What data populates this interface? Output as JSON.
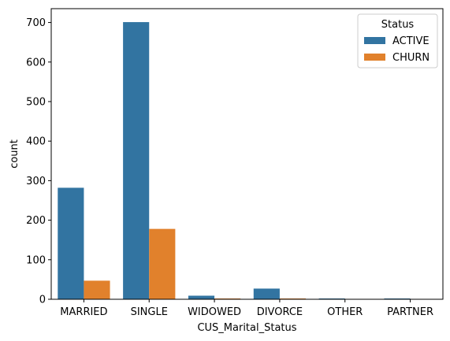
{
  "chart_data": {
    "type": "bar",
    "title": "",
    "xlabel": "CUS_Marital_Status",
    "ylabel": "count",
    "categories": [
      "MARRIED",
      "SINGLE",
      "WIDOWED",
      "DIVORCE",
      "OTHER",
      "PARTNER"
    ],
    "series": [
      {
        "name": "ACTIVE",
        "color": "#3274a1",
        "values": [
          282,
          701,
          9,
          27,
          2,
          2
        ]
      },
      {
        "name": "CHURN",
        "color": "#e1812c",
        "values": [
          47,
          178,
          2,
          2,
          0,
          0
        ]
      }
    ],
    "ylim": [
      0,
      735
    ],
    "yticks": [
      0,
      100,
      200,
      300,
      400,
      500,
      600,
      700
    ],
    "legend": {
      "title": "Status",
      "position": "top-right"
    },
    "grid": false
  }
}
